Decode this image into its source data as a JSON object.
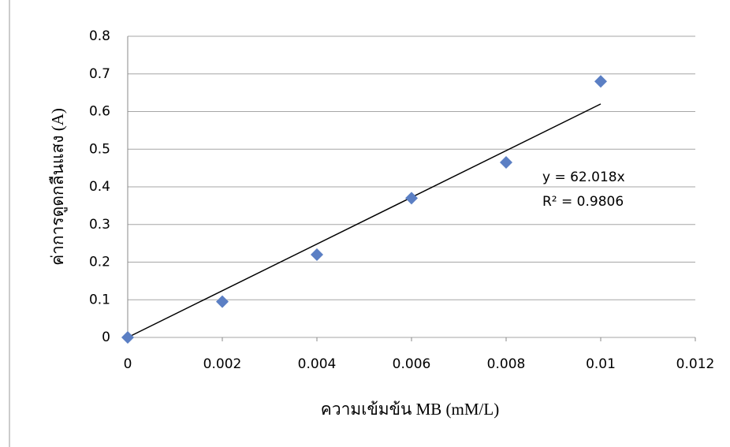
{
  "chart_data": {
    "type": "scatter",
    "x_label": "ความเข้มข้น MB (mM/L)",
    "y_label": "ค่าการดูดกลืนแสง (A)",
    "x": [
      0,
      0.002,
      0.004,
      0.006,
      0.008,
      0.01
    ],
    "series": [
      {
        "color": "#5b7fc4",
        "values": [
          0,
          0.095,
          0.22,
          0.37,
          0.465,
          0.68
        ]
      }
    ],
    "trendline": {
      "slope": 62.018,
      "label": "y = 62.018x",
      "r2_label": "R² = 0.9806",
      "color": "#000000"
    },
    "xlim": [
      0,
      0.012
    ],
    "xticks": [
      0,
      0.002,
      0.004,
      0.006,
      0.008,
      0.01,
      0.012
    ],
    "ylim": [
      0,
      0.8
    ],
    "yticks": [
      0,
      0.1,
      0.2,
      0.3,
      0.4,
      0.5,
      0.6,
      0.7,
      0.8
    ],
    "grid": true
  }
}
